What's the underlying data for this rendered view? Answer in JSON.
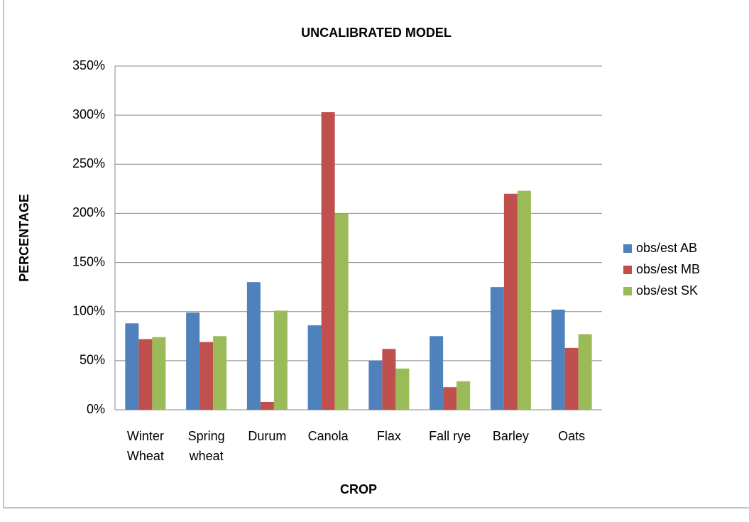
{
  "chart_data": {
    "type": "bar",
    "title": "UNCALIBRATED MODEL",
    "x_label": "CROP",
    "y_label": "PERCENTAGE",
    "categories": [
      "Winter Wheat",
      "Spring wheat",
      "Durum",
      "Canola",
      "Flax",
      "Fall rye",
      "Barley",
      "Oats"
    ],
    "series": [
      {
        "name": "obs/est AB",
        "color": "#4f81bd",
        "values": [
          88,
          99,
          130,
          86,
          50,
          75,
          125,
          102
        ]
      },
      {
        "name": "obs/est MB",
        "color": "#c0504d",
        "values": [
          72,
          69,
          8,
          303,
          62,
          23,
          220,
          63
        ]
      },
      {
        "name": "obs/est SK",
        "color": "#9bbb59",
        "values": [
          74,
          75,
          101,
          200,
          42,
          29,
          223,
          77
        ]
      }
    ],
    "ylim": [
      0,
      350
    ],
    "yticks": [
      {
        "value": 0,
        "label": "0%"
      },
      {
        "value": 50,
        "label": "50%"
      },
      {
        "value": 100,
        "label": "100%"
      },
      {
        "value": 150,
        "label": "150%"
      },
      {
        "value": 200,
        "label": "200%"
      },
      {
        "value": 250,
        "label": "250%"
      },
      {
        "value": 300,
        "label": "300%"
      },
      {
        "value": 350,
        "label": "350%"
      }
    ],
    "grid": true,
    "legend": "right"
  }
}
